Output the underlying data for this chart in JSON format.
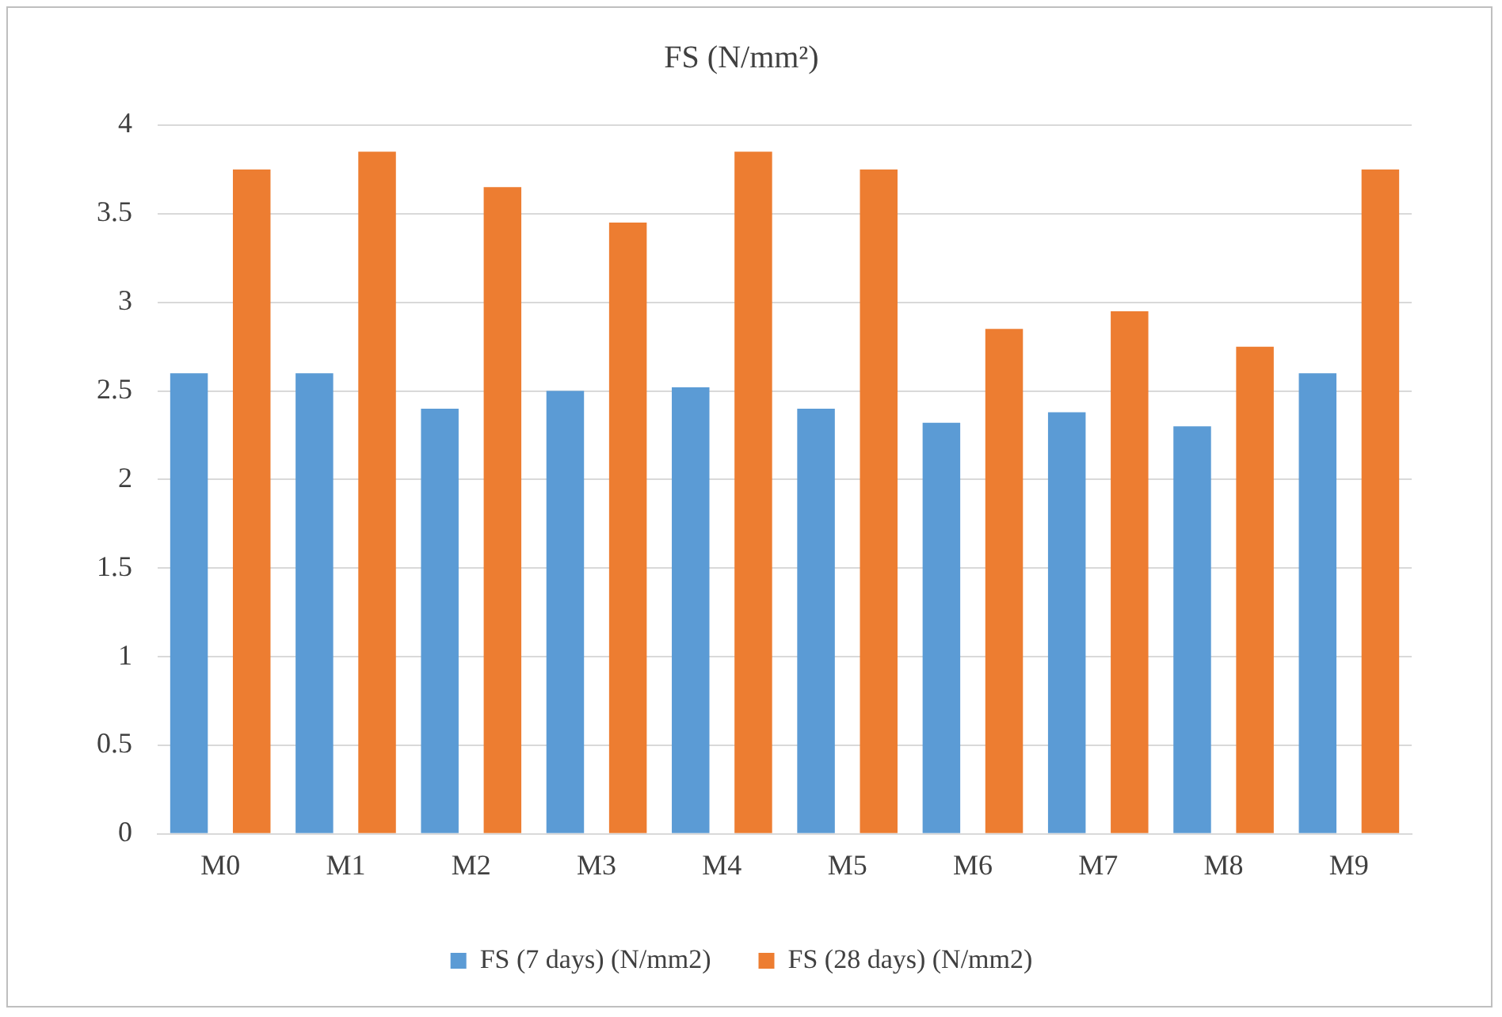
{
  "chart_data": {
    "type": "bar",
    "title": "FS (N/mm²)",
    "categories": [
      "M0",
      "M1",
      "M2",
      "M3",
      "M4",
      "M5",
      "M6",
      "M7",
      "M8",
      "M9"
    ],
    "series": [
      {
        "name": "FS (7 days) (N/mm2)",
        "color": "#5b9bd5",
        "values": [
          2.6,
          2.6,
          2.4,
          2.5,
          2.52,
          2.4,
          2.32,
          2.38,
          2.3,
          2.6
        ]
      },
      {
        "name": "FS (28 days) (N/mm2)",
        "color": "#ed7d31",
        "values": [
          3.75,
          3.85,
          3.65,
          3.45,
          3.85,
          3.75,
          2.85,
          2.95,
          2.75,
          3.75
        ]
      }
    ],
    "ylim": [
      0,
      4
    ],
    "yticks": [
      0,
      0.5,
      1,
      1.5,
      2,
      2.5,
      3,
      3.5,
      4
    ],
    "grid": "y",
    "legend": "bottom"
  }
}
